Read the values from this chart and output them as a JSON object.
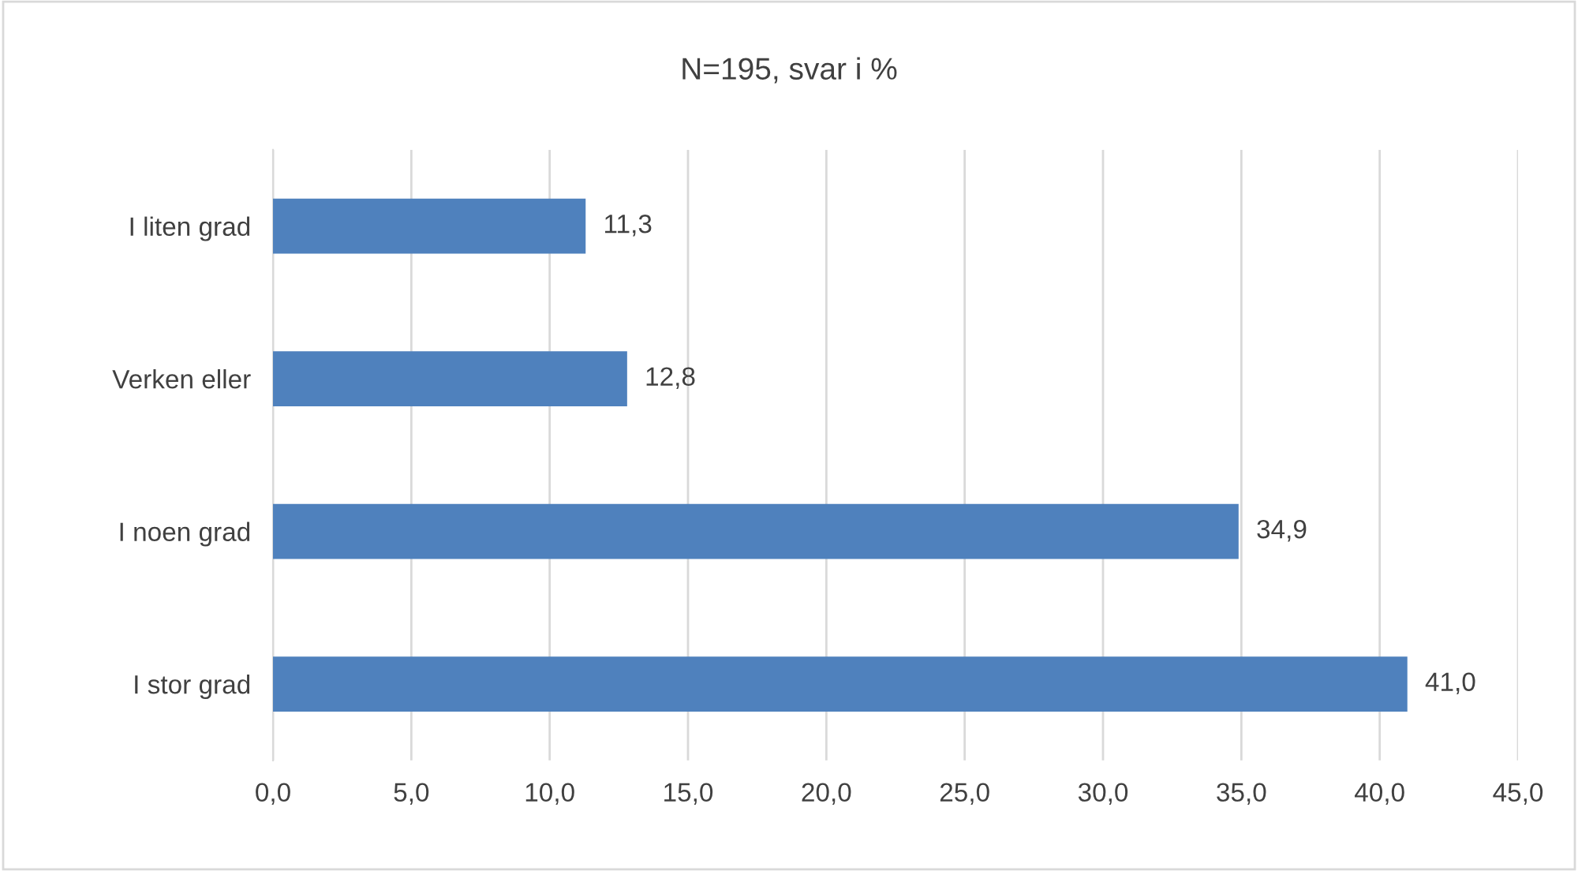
{
  "chart_data": {
    "type": "bar",
    "orientation": "horizontal",
    "title": "N=195, svar i %",
    "categories": [
      "I liten grad",
      "Verken eller",
      "I noen grad",
      "I stor grad"
    ],
    "values": [
      11.3,
      12.8,
      34.9,
      41.0
    ],
    "value_labels": [
      "11,3",
      "12,8",
      "34,9",
      "41,0"
    ],
    "color": "#4f81bd",
    "xlim": [
      0,
      45
    ],
    "xticks": [
      {
        "value": 0,
        "label": "0,0"
      },
      {
        "value": 5,
        "label": "5,0"
      },
      {
        "value": 10,
        "label": "10,0"
      },
      {
        "value": 15,
        "label": "15,0"
      },
      {
        "value": 20,
        "label": "20,0"
      },
      {
        "value": 25,
        "label": "25,0"
      },
      {
        "value": 30,
        "label": "30,0"
      },
      {
        "value": 35,
        "label": "35,0"
      },
      {
        "value": 40,
        "label": "40,0"
      },
      {
        "value": 45,
        "label": "45,0"
      }
    ],
    "grid": "x",
    "legend": false
  }
}
